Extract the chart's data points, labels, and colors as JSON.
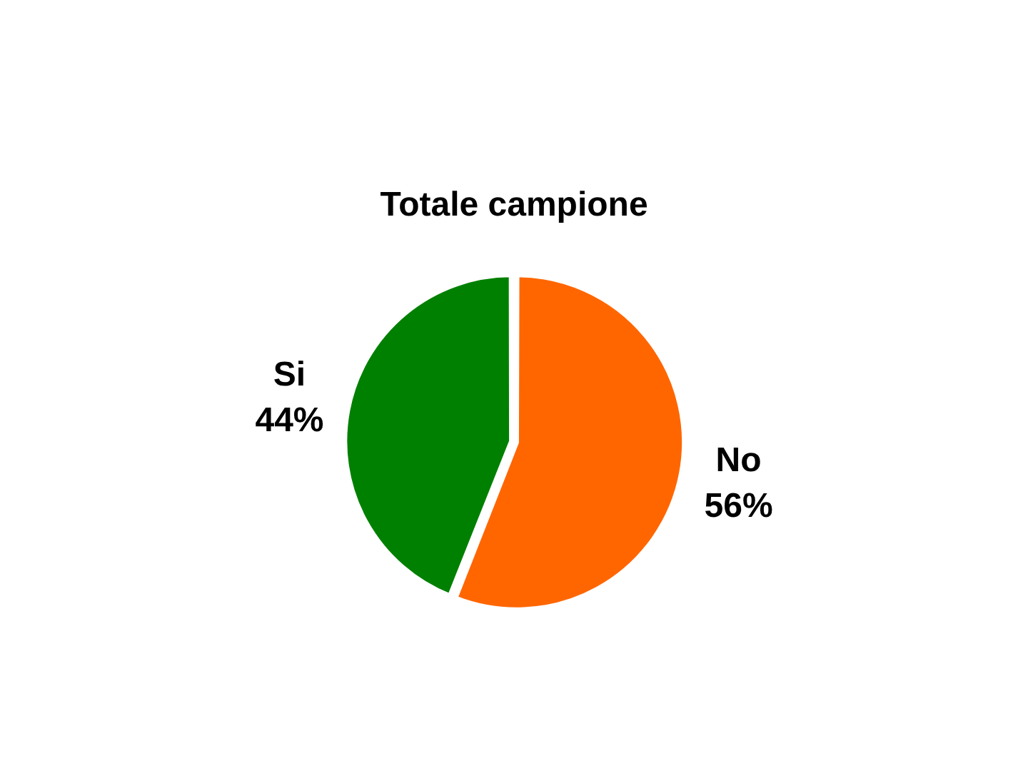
{
  "chart_data": {
    "type": "pie",
    "title": "Totale campione",
    "categories": [
      "No",
      "Si"
    ],
    "values": [
      56,
      44
    ],
    "colors": [
      "#ff6600",
      "#008000"
    ],
    "value_labels": [
      "56%",
      "44%"
    ],
    "legend": false
  }
}
